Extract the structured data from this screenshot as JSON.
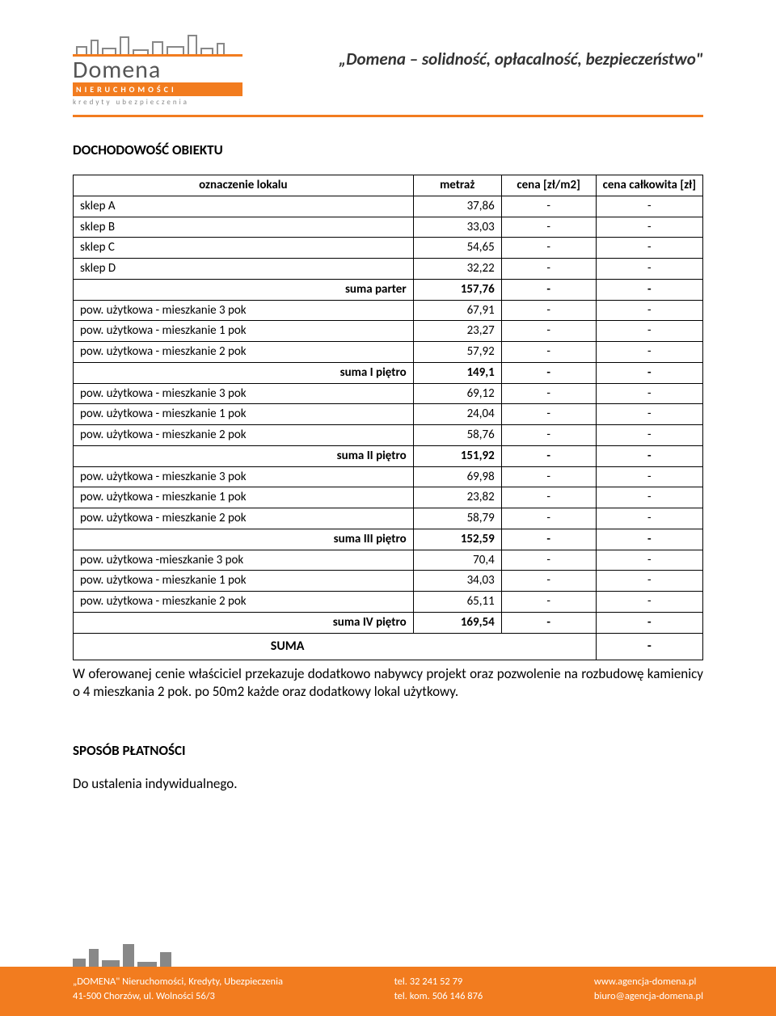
{
  "header": {
    "logo_main": "Domena",
    "logo_sub": "NIERUCHOMOŚCI",
    "logo_sub2": "kredyty ubezpieczenia",
    "tagline": "„Domena – solidność, opłacalność, bezpieczeństwo\""
  },
  "colors": {
    "accent": "#f27c1f",
    "grey": "#888888",
    "text": "#000000"
  },
  "section1_title": "DOCHODOWOŚĆ OBIEKTU",
  "table": {
    "headers": {
      "col1": "oznaczenie lokalu",
      "col2": "metraż",
      "col3": "cena [zł/m2]",
      "col4": "cena całkowita [zł]"
    },
    "rows": [
      {
        "label": "sklep A",
        "v": "37,86",
        "c3": "-",
        "c4": "-",
        "bold": false
      },
      {
        "label": "sklep B",
        "v": "33,03",
        "c3": "-",
        "c4": "-",
        "bold": false
      },
      {
        "label": "sklep C",
        "v": "54,65",
        "c3": "-",
        "c4": "-",
        "bold": false
      },
      {
        "label": "sklep  D",
        "v": "32,22",
        "c3": "-",
        "c4": "-",
        "bold": false
      },
      {
        "label": "suma parter",
        "v": "157,76",
        "c3": "-",
        "c4": "-",
        "bold": true
      },
      {
        "label": "pow. użytkowa - mieszkanie 3 pok",
        "v": "67,91",
        "c3": "-",
        "c4": "-",
        "bold": false
      },
      {
        "label": "pow. użytkowa - mieszkanie 1 pok",
        "v": "23,27",
        "c3": "-",
        "c4": "-",
        "bold": false
      },
      {
        "label": "pow. użytkowa - mieszkanie 2 pok",
        "v": "57,92",
        "c3": "-",
        "c4": "-",
        "bold": false
      },
      {
        "label": "suma I piętro",
        "v": "149,1",
        "c3": "-",
        "c4": "-",
        "bold": true
      },
      {
        "label": "pow. użytkowa - mieszkanie 3 pok",
        "v": "69,12",
        "c3": "-",
        "c4": "-",
        "bold": false
      },
      {
        "label": "pow. użytkowa - mieszkanie 1 pok",
        "v": "24,04",
        "c3": "-",
        "c4": "-",
        "bold": false
      },
      {
        "label": "pow. użytkowa - mieszkanie 2 pok",
        "v": "58,76",
        "c3": "-",
        "c4": "-",
        "bold": false
      },
      {
        "label": "suma II piętro",
        "v": "151,92",
        "c3": "-",
        "c4": "-",
        "bold": true
      },
      {
        "label": "pow. użytkowa - mieszkanie 3 pok",
        "v": "69,98",
        "c3": "-",
        "c4": "-",
        "bold": false
      },
      {
        "label": "pow. użytkowa - mieszkanie 1 pok",
        "v": "23,82",
        "c3": "-",
        "c4": "-",
        "bold": false
      },
      {
        "label": "pow. użytkowa - mieszkanie 2 pok",
        "v": "58,79",
        "c3": "-",
        "c4": "-",
        "bold": false
      },
      {
        "label": "suma III piętro",
        "v": "152,59",
        "c3": "-",
        "c4": "-",
        "bold": true
      },
      {
        "label": "pow. użytkowa -mieszkanie 3 pok",
        "v": "70,4",
        "c3": "-",
        "c4": "-",
        "bold": false
      },
      {
        "label": "pow. użytkowa - mieszkanie 1 pok",
        "v": "34,03",
        "c3": "-",
        "c4": "-",
        "bold": false
      },
      {
        "label": "pow. użytkowa - mieszkanie 2 pok",
        "v": "65,11",
        "c3": "-",
        "c4": "-",
        "bold": false
      },
      {
        "label": "suma IV piętro",
        "v": "169,54",
        "c3": "-",
        "c4": "-",
        "bold": true
      }
    ],
    "suma_label": "SUMA",
    "suma_value": "-"
  },
  "body_text": "W oferowanej cenie właściciel przekazuje dodatkowo nabywcy projekt oraz pozwolenie na rozbudowę kamienicy o 4 mieszkania 2 pok. po 50m2 każde oraz dodatkowy lokal użytkowy.",
  "section2_title": "SPOSÓB PŁATNOŚCI",
  "section2_text": "Do ustalenia indywidualnego.",
  "footer": {
    "left1": "„DOMENA\" Nieruchomości, Kredyty, Ubezpieczenia",
    "left2": "41-500 Chorzów, ul. Wolności 56/3",
    "mid1": "tel. 32 241 52 79",
    "mid2": "tel. kom. 506 146 876",
    "right1": "www.agencja-domena.pl",
    "right2": "biuro@agencja-domena.pl"
  }
}
